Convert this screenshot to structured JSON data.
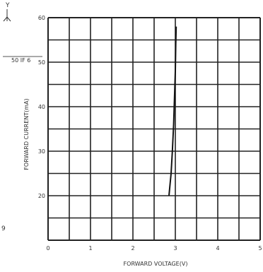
{
  "chart_data": {
    "type": "line",
    "title": "",
    "xlabel": "FORWARD VOLTAGE(V)",
    "ylabel": "FORWARD CURRENT(mA)",
    "xlim": [
      0,
      5
    ],
    "ylim": [
      10,
      60
    ],
    "x_ticks": [
      "0",
      "1",
      "2",
      "3",
      "4",
      "5"
    ],
    "y_ticks": [
      "20",
      "30",
      "40",
      "50",
      "60"
    ],
    "grid": true,
    "legend": "none",
    "series": [
      {
        "x": [
          2.85,
          2.87,
          2.9,
          2.93,
          2.96,
          2.98,
          3.0,
          3.01,
          3.02
        ],
        "y": [
          20,
          22,
          25,
          30,
          36,
          42,
          48,
          54,
          58
        ]
      }
    ],
    "colors": {
      "grid": "#222222",
      "curve": "#111111",
      "frame": "#222222"
    },
    "side_labels": {
      "top_axis_glyph": "Y",
      "marker_text": "50 IF 6",
      "bottom_mark": "9"
    }
  }
}
